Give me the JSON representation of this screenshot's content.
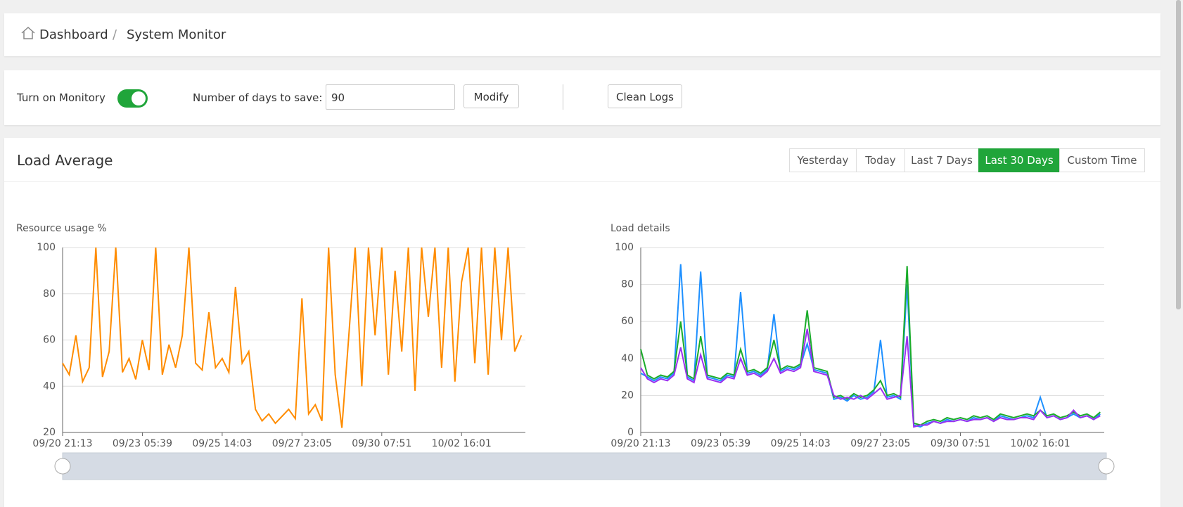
{
  "header": {
    "breadcrumb": [
      "Dashboard",
      "System Monitor"
    ],
    "separator": "/"
  },
  "controls": {
    "monitor_label": "Turn on Monitory",
    "days_label": "Number of days to save:",
    "days_value": "90",
    "modify": "Modify",
    "clean_logs": "Clean Logs"
  },
  "panel": {
    "title": "Load Average",
    "ranges": [
      "Yesterday",
      "Today",
      "Last 7 Days",
      "Last 30 Days",
      "Custom Time"
    ],
    "active_range": 3
  },
  "chart_data": [
    {
      "type": "line",
      "title": "Resource usage %",
      "categories": [
        "09/20 21:13",
        null,
        null,
        null,
        null,
        null,
        null,
        null,
        null,
        null,
        null,
        null,
        "09/23 05:39",
        null,
        null,
        null,
        null,
        null,
        null,
        null,
        null,
        null,
        null,
        null,
        "09/25 14:03",
        null,
        null,
        null,
        null,
        null,
        null,
        null,
        null,
        null,
        null,
        null,
        "09/27 23:05",
        null,
        null,
        null,
        null,
        null,
        null,
        null,
        null,
        null,
        null,
        null,
        "09/30 07:51",
        null,
        null,
        null,
        null,
        null,
        null,
        null,
        null,
        null,
        null,
        null,
        "10/02 16:01",
        null,
        null,
        null,
        null,
        null,
        null,
        null,
        null,
        null
      ],
      "series": [
        {
          "color": "#ff8c00",
          "values": [
            50,
            45,
            62,
            42,
            48,
            100,
            44,
            55,
            100,
            46,
            52,
            43,
            60,
            47,
            100,
            45,
            58,
            48,
            62,
            100,
            50,
            47,
            72,
            48,
            52,
            46,
            83,
            50,
            55,
            30,
            25,
            28,
            24,
            27,
            30,
            26,
            78,
            28,
            32,
            25,
            100,
            45,
            22,
            60,
            100,
            40,
            100,
            62,
            100,
            45,
            90,
            55,
            100,
            38,
            100,
            70,
            100,
            48,
            100,
            42,
            85,
            100,
            50,
            100,
            45,
            100,
            60,
            100,
            55,
            62
          ]
        }
      ],
      "ylim": [
        20,
        100
      ],
      "yticks": [
        20,
        40,
        60,
        80,
        100
      ],
      "grid": true
    },
    {
      "type": "line",
      "title": "Load details",
      "categories": [
        "09/20 21:13",
        null,
        null,
        null,
        null,
        null,
        null,
        null,
        null,
        null,
        null,
        null,
        "09/23 05:39",
        null,
        null,
        null,
        null,
        null,
        null,
        null,
        null,
        null,
        null,
        null,
        "09/25 14:03",
        null,
        null,
        null,
        null,
        null,
        null,
        null,
        null,
        null,
        null,
        null,
        "09/27 23:05",
        null,
        null,
        null,
        null,
        null,
        null,
        null,
        null,
        null,
        null,
        null,
        "09/30 07:51",
        null,
        null,
        null,
        null,
        null,
        null,
        null,
        null,
        null,
        null,
        null,
        "10/02 16:01",
        null,
        null,
        null,
        null,
        null,
        null,
        null,
        null,
        null
      ],
      "series": [
        {
          "color": "#1e90ff",
          "values": [
            32,
            30,
            28,
            30,
            29,
            32,
            91,
            30,
            28,
            87,
            30,
            29,
            28,
            31,
            30,
            76,
            32,
            33,
            31,
            34,
            64,
            33,
            35,
            34,
            36,
            48,
            34,
            33,
            32,
            18,
            19,
            17,
            20,
            18,
            19,
            22,
            50,
            19,
            20,
            18,
            80,
            4,
            3,
            5,
            6,
            5,
            7,
            6,
            7,
            6,
            8,
            7,
            8,
            6,
            9,
            8,
            7,
            8,
            9,
            8,
            19,
            8,
            9,
            7,
            8,
            10,
            8,
            9,
            7,
            10
          ]
        },
        {
          "color": "#1aac2a",
          "values": [
            45,
            31,
            29,
            31,
            30,
            33,
            60,
            31,
            29,
            52,
            31,
            30,
            29,
            32,
            31,
            45,
            33,
            34,
            32,
            35,
            50,
            34,
            36,
            35,
            37,
            66,
            35,
            34,
            33,
            19,
            20,
            18,
            21,
            19,
            20,
            23,
            28,
            20,
            21,
            19,
            90,
            5,
            4,
            6,
            7,
            6,
            8,
            7,
            8,
            7,
            9,
            8,
            9,
            7,
            10,
            9,
            8,
            9,
            10,
            9,
            12,
            9,
            10,
            8,
            9,
            11,
            9,
            10,
            8,
            11
          ]
        },
        {
          "color": "#9b30f0",
          "values": [
            35,
            29,
            27,
            29,
            28,
            31,
            46,
            29,
            27,
            42,
            29,
            28,
            27,
            30,
            29,
            40,
            31,
            32,
            30,
            33,
            40,
            32,
            34,
            33,
            35,
            56,
            33,
            32,
            31,
            20,
            18,
            19,
            18,
            20,
            18,
            21,
            24,
            18,
            19,
            20,
            52,
            3,
            4,
            4,
            6,
            5,
            6,
            6,
            7,
            6,
            7,
            7,
            8,
            6,
            8,
            7,
            7,
            8,
            8,
            7,
            12,
            8,
            9,
            7,
            8,
            12,
            8,
            9,
            7,
            9
          ]
        }
      ],
      "ylim": [
        0,
        100
      ],
      "yticks": [
        0,
        20,
        40,
        60,
        80,
        100
      ],
      "grid": true
    }
  ]
}
